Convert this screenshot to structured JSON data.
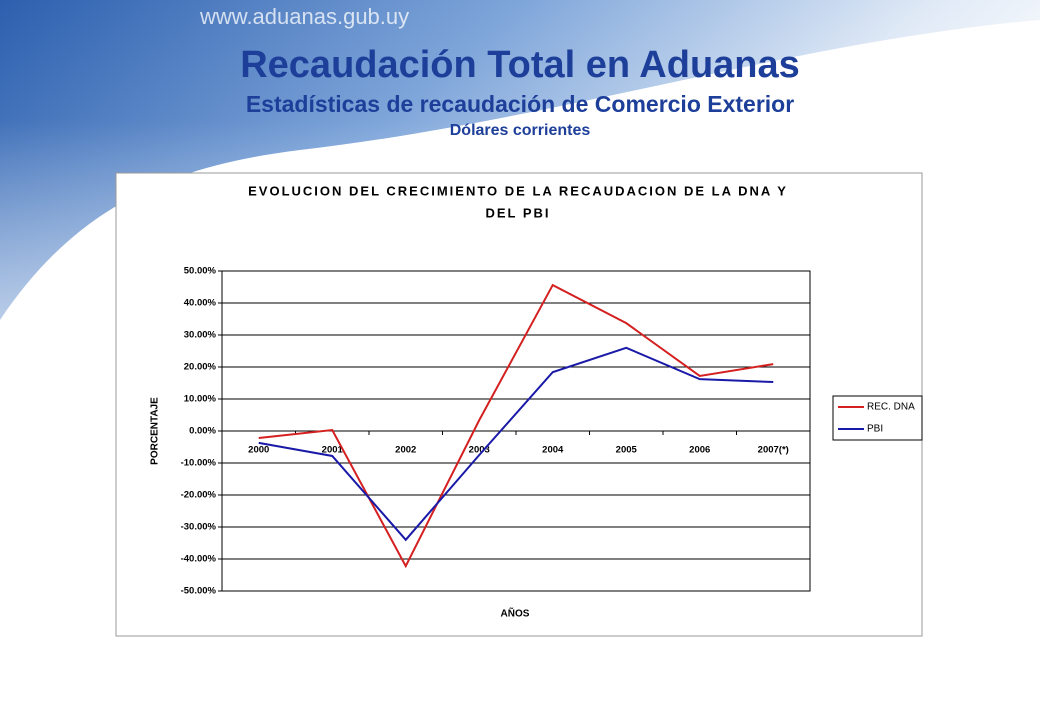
{
  "slide": {
    "website": "www.aduanas.gub.uy",
    "title": "Recaudación Total en Aduanas",
    "subtitle": "Estadísticas de recaudación de Comercio Exterior",
    "note": "Dólares corrientes"
  },
  "chart_data": {
    "type": "line",
    "title": [
      "EVOLUCION DEL CRECIMIENTO DE LA RECAUDACION DE LA DNA Y",
      "DEL PBI"
    ],
    "x_label": "AÑOS",
    "y_label": "PORCENTAJE",
    "categories": [
      "2000",
      "2001",
      "2002",
      "2003",
      "2004",
      "2005",
      "2006",
      "2007(*)"
    ],
    "series": [
      {
        "name": "REC. DNA",
        "color": "#d42020",
        "values": [
          -2.2,
          0.3,
          -42.2,
          3.4,
          45.6,
          33.7,
          17.2,
          20.9
        ]
      },
      {
        "name": "PBI",
        "color": "#1a1aa8",
        "values": [
          -3.7,
          -7.8,
          -34,
          -7.5,
          18.4,
          26,
          16.2,
          15.3
        ]
      }
    ],
    "ylim": [
      -50,
      50
    ],
    "yticks": [
      {
        "value": 50,
        "label": "50.00%"
      },
      {
        "value": 40,
        "label": "40.00%"
      },
      {
        "value": 30,
        "label": "30.00%"
      },
      {
        "value": 20,
        "label": "20.00%"
      },
      {
        "value": 10,
        "label": "10.00%"
      },
      {
        "value": 0,
        "label": "0.00%"
      },
      {
        "value": -10,
        "label": "-10.00%"
      },
      {
        "value": -20,
        "label": "-20.00%"
      },
      {
        "value": -30,
        "label": "-30.00%"
      },
      {
        "value": -40,
        "label": "-40.00%"
      },
      {
        "value": -50,
        "label": "-50.00%"
      }
    ],
    "grid": true,
    "legend": "right"
  }
}
